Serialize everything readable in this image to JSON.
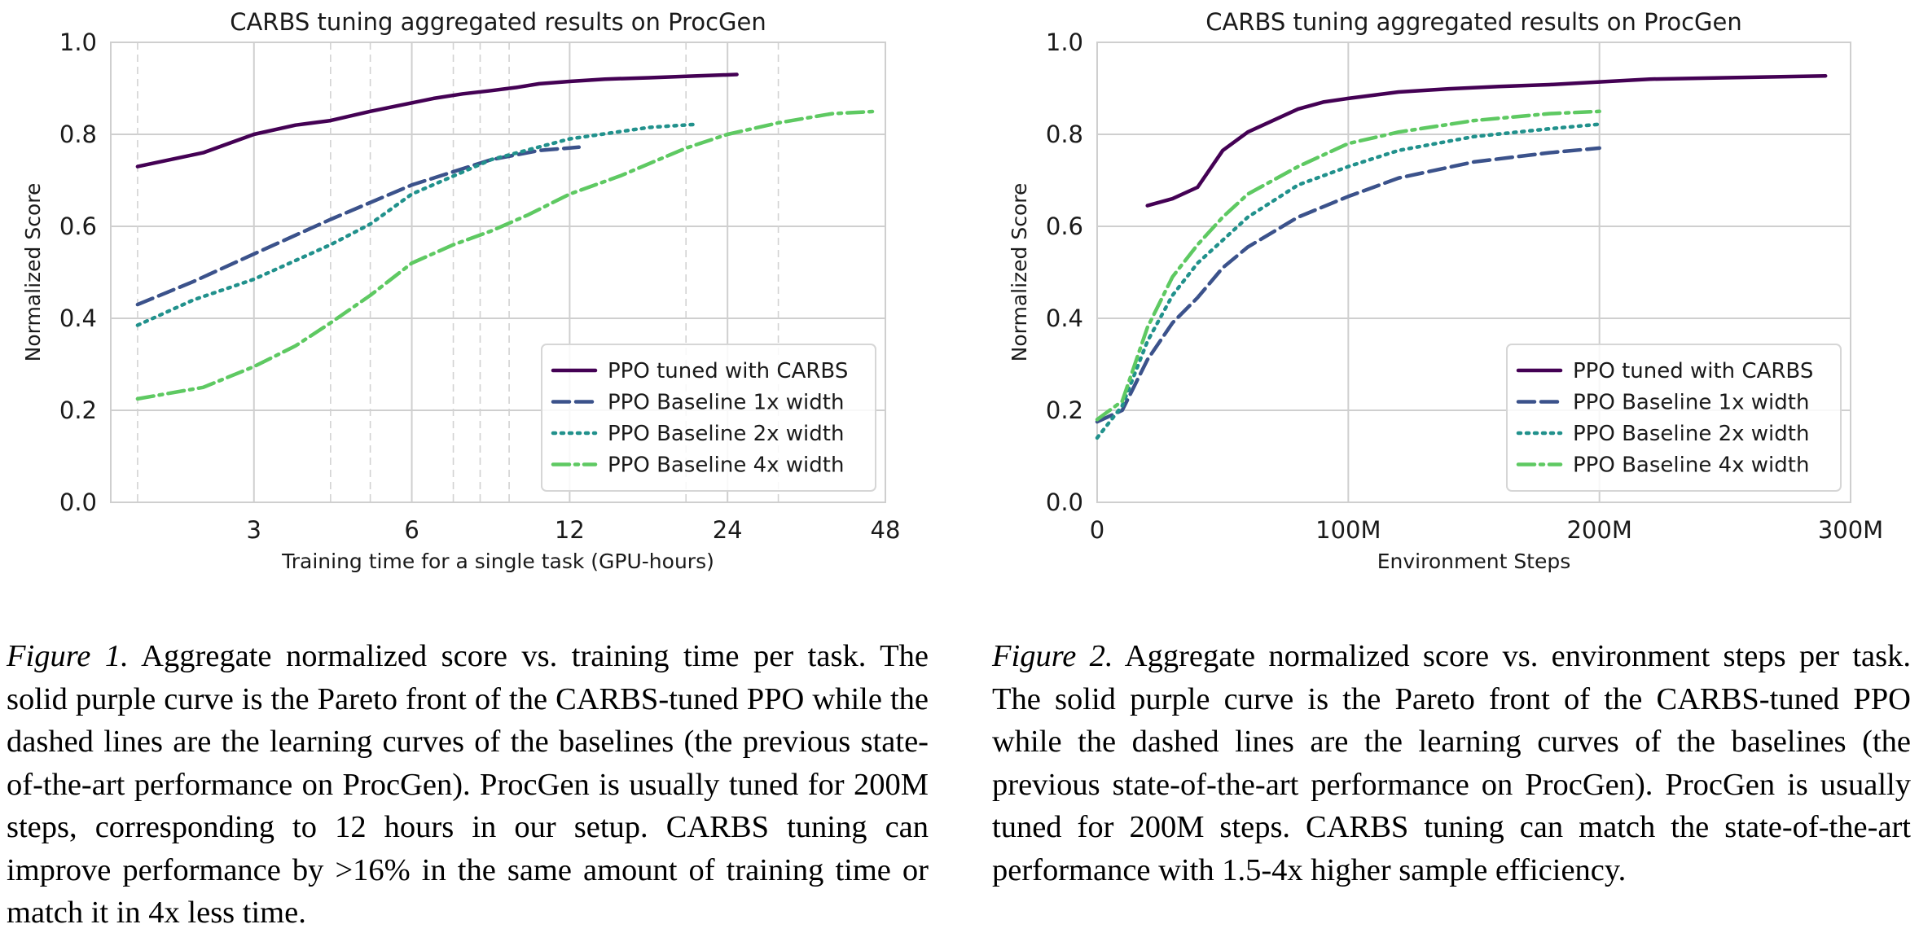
{
  "chart_data": [
    {
      "type": "line",
      "title": "CARBS tuning aggregated results on ProcGen",
      "xlabel": "Training time for a single task (GPU-hours)",
      "ylabel": "Normalized Score",
      "x_scale": "log",
      "xlim": [
        1.6,
        48
      ],
      "ylim": [
        0.0,
        1.0
      ],
      "x_ticks": [
        3,
        6,
        12,
        24,
        48
      ],
      "x_tick_labels": [
        "3",
        "6",
        "12",
        "24",
        "48"
      ],
      "y_ticks": [
        0.0,
        0.2,
        0.4,
        0.6,
        0.8,
        1.0
      ],
      "y_tick_labels": [
        "0.0",
        "0.2",
        "0.4",
        "0.6",
        "0.8",
        "1.0"
      ],
      "vertical_dashed_lines_x": [
        1.8,
        4.2,
        5.0,
        7.2,
        8.1,
        9.2,
        20.0,
        30.0
      ],
      "grid": true,
      "legend_position": "lower-right",
      "series": [
        {
          "name": "PPO tuned with CARBS",
          "style": "solid",
          "color": "#440154",
          "x": [
            1.8,
            2.4,
            3.0,
            3.6,
            4.2,
            5.0,
            5.8,
            6.6,
            7.5,
            8.5,
            9.5,
            10.5,
            12.0,
            14.0,
            17.0,
            20.0,
            25.0
          ],
          "y": [
            0.73,
            0.76,
            0.8,
            0.82,
            0.83,
            0.85,
            0.865,
            0.878,
            0.888,
            0.895,
            0.902,
            0.91,
            0.915,
            0.92,
            0.923,
            0.926,
            0.93
          ]
        },
        {
          "name": "PPO Baseline 1x width",
          "style": "dashed",
          "color": "#3b528b",
          "x": [
            1.8,
            2.3,
            3.0,
            4.2,
            6.0,
            8.5,
            10.5,
            12.5
          ],
          "y": [
            0.43,
            0.48,
            0.54,
            0.615,
            0.69,
            0.745,
            0.765,
            0.772
          ]
        },
        {
          "name": "PPO Baseline 2x width",
          "style": "dotted",
          "color": "#21918c",
          "x": [
            1.8,
            2.3,
            3.0,
            4.2,
            5.0,
            6.0,
            8.5,
            12.0,
            17.0,
            21.0
          ],
          "y": [
            0.385,
            0.44,
            0.485,
            0.56,
            0.605,
            0.67,
            0.745,
            0.79,
            0.815,
            0.822
          ]
        },
        {
          "name": "PPO Baseline 4x width",
          "style": "dashdot",
          "color": "#5ec962",
          "x": [
            1.8,
            2.4,
            3.0,
            3.6,
            4.2,
            5.0,
            6.0,
            7.2,
            8.5,
            10.0,
            12.0,
            15.0,
            20.0,
            24.0,
            30.0,
            38.0,
            46.0
          ],
          "y": [
            0.225,
            0.25,
            0.295,
            0.34,
            0.39,
            0.45,
            0.52,
            0.56,
            0.59,
            0.625,
            0.67,
            0.71,
            0.77,
            0.8,
            0.825,
            0.845,
            0.85
          ]
        }
      ]
    },
    {
      "type": "line",
      "title": "CARBS tuning aggregated results on ProcGen",
      "xlabel": "Environment Steps",
      "ylabel": "Normalized Score",
      "xlim": [
        0,
        300000000
      ],
      "ylim": [
        0.0,
        1.0
      ],
      "x_ticks": [
        0,
        100000000,
        200000000,
        300000000
      ],
      "x_tick_labels": [
        "0",
        "100M",
        "200M",
        "300M"
      ],
      "y_ticks": [
        0.0,
        0.2,
        0.4,
        0.6,
        0.8,
        1.0
      ],
      "y_tick_labels": [
        "0.0",
        "0.2",
        "0.4",
        "0.6",
        "0.8",
        "1.0"
      ],
      "grid": true,
      "legend_position": "lower-right",
      "series": [
        {
          "name": "PPO tuned with CARBS",
          "style": "solid",
          "color": "#440154",
          "x": [
            20000000,
            30000000,
            40000000,
            50000000,
            60000000,
            70000000,
            80000000,
            90000000,
            100000000,
            120000000,
            140000000,
            160000000,
            180000000,
            200000000,
            220000000,
            250000000,
            290000000
          ],
          "y": [
            0.645,
            0.66,
            0.685,
            0.765,
            0.805,
            0.83,
            0.855,
            0.87,
            0.878,
            0.892,
            0.899,
            0.904,
            0.908,
            0.914,
            0.92,
            0.923,
            0.927
          ]
        },
        {
          "name": "PPO Baseline 1x width",
          "style": "dashed",
          "color": "#3b528b",
          "x": [
            0,
            10000000,
            20000000,
            30000000,
            40000000,
            50000000,
            60000000,
            80000000,
            100000000,
            120000000,
            150000000,
            180000000,
            200000000
          ],
          "y": [
            0.175,
            0.2,
            0.31,
            0.39,
            0.445,
            0.51,
            0.555,
            0.62,
            0.665,
            0.705,
            0.74,
            0.76,
            0.77
          ]
        },
        {
          "name": "PPO Baseline 2x width",
          "style": "dotted",
          "color": "#21918c",
          "x": [
            0,
            10000000,
            20000000,
            30000000,
            40000000,
            50000000,
            60000000,
            80000000,
            100000000,
            120000000,
            150000000,
            180000000,
            200000000
          ],
          "y": [
            0.14,
            0.21,
            0.35,
            0.45,
            0.52,
            0.57,
            0.62,
            0.69,
            0.73,
            0.765,
            0.795,
            0.812,
            0.822
          ]
        },
        {
          "name": "PPO Baseline 4x width",
          "style": "dashdot",
          "color": "#5ec962",
          "x": [
            0,
            10000000,
            20000000,
            30000000,
            40000000,
            50000000,
            60000000,
            80000000,
            100000000,
            120000000,
            150000000,
            180000000,
            200000000
          ],
          "y": [
            0.18,
            0.22,
            0.38,
            0.49,
            0.56,
            0.62,
            0.67,
            0.73,
            0.78,
            0.805,
            0.83,
            0.845,
            0.85
          ]
        }
      ]
    }
  ],
  "captions": [
    {
      "label": "Figure 1.",
      "text": " Aggregate normalized score vs. training time per task. The solid purple curve is the Pareto front of the CARBS-tuned PPO while the dashed lines are the learning curves of the baselines (the previous state-of-the-art performance on ProcGen). ProcGen is usually tuned for 200M steps, corresponding to 12 hours in our setup. CARBS tuning can improve performance by >16% in the same amount of training time or match it in 4x less time."
    },
    {
      "label": "Figure 2.",
      "text": " Aggregate normalized score vs. environment steps per task. The solid purple curve is the Pareto front of the CARBS-tuned PPO while the dashed lines are the learning curves of the baselines (the previous state-of-the-art performance on ProcGen). ProcGen is usually tuned for 200M steps. CARBS tuning can match the state-of-the-art performance with 1.5-4x higher sample efficiency."
    }
  ]
}
